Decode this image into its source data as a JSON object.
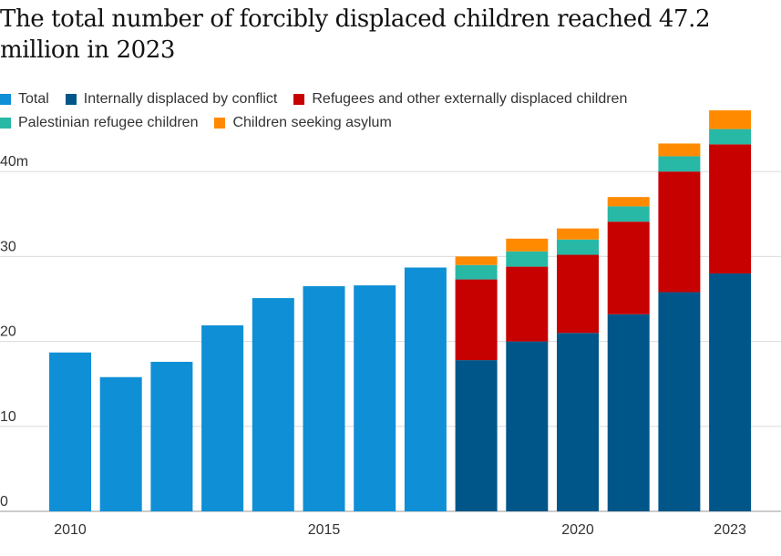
{
  "chart_data": {
    "type": "bar",
    "stacked": true,
    "title": "The total number of forcibly displaced children reached 47.2 million in 2023",
    "xlabel": "",
    "ylabel": "",
    "x": [
      2010,
      2011,
      2012,
      2013,
      2014,
      2015,
      2016,
      2017,
      2018,
      2019,
      2020,
      2021,
      2022,
      2023
    ],
    "x_tick_labels": [
      "2010",
      "2015",
      "2020",
      "2023"
    ],
    "x_tick_values": [
      2010,
      2015,
      2020,
      2023
    ],
    "y_tick_labels": [
      "0",
      "10",
      "20",
      "30",
      "40m"
    ],
    "y_tick_values": [
      0,
      10,
      20,
      30,
      40
    ],
    "ylim": [
      0,
      47.2
    ],
    "grid": true,
    "legend_position": "top-left",
    "series": [
      {
        "name": "Total",
        "color": "#0f8fd6",
        "values": [
          18.7,
          15.8,
          17.6,
          21.9,
          25.1,
          26.5,
          26.6,
          28.7,
          null,
          null,
          null,
          null,
          null,
          null
        ]
      },
      {
        "name": "Internally displaced by conflict",
        "color": "#005689",
        "values": [
          null,
          null,
          null,
          null,
          null,
          null,
          null,
          null,
          17.8,
          20.0,
          21.0,
          23.2,
          25.8,
          28.0
        ]
      },
      {
        "name": "Refugees and other externally displaced children",
        "color": "#c70000",
        "values": [
          null,
          null,
          null,
          null,
          null,
          null,
          null,
          null,
          9.5,
          8.8,
          9.2,
          10.9,
          14.2,
          15.2
        ]
      },
      {
        "name": "Palestinian refugee children",
        "color": "#27b8a6",
        "values": [
          null,
          null,
          null,
          null,
          null,
          null,
          null,
          null,
          1.7,
          1.8,
          1.8,
          1.8,
          1.8,
          1.8
        ]
      },
      {
        "name": "Children seeking asylum",
        "color": "#ff8a00",
        "values": [
          null,
          null,
          null,
          null,
          null,
          null,
          null,
          null,
          1.0,
          1.5,
          1.3,
          1.1,
          1.5,
          2.2
        ]
      }
    ]
  }
}
